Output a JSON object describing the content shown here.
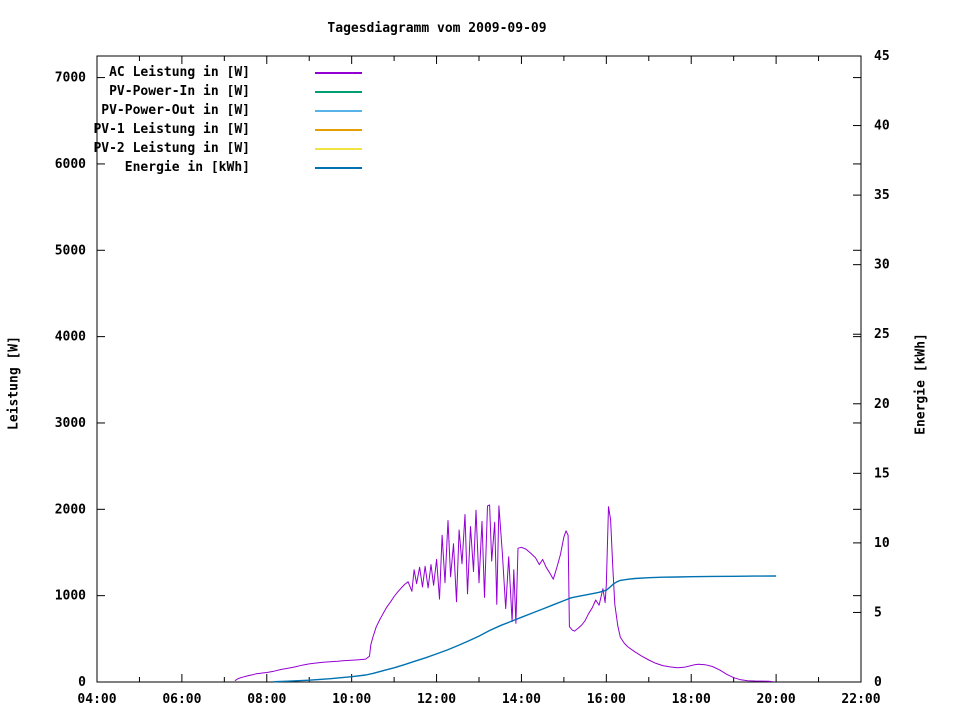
{
  "page": {
    "background": "#ffffff",
    "foreground": "#000000"
  },
  "chart_data": {
    "type": "line",
    "title": "Tagesdiagramm vom 2009-09-09",
    "ylabel": "Leistung [W]",
    "y2label": "Energie [kWh]",
    "xlabel": "",
    "grid": false,
    "legend_position": "top-left-inside",
    "x_axis": {
      "unit": "time-of-day",
      "min_hour": 4,
      "max_hour": 22,
      "major_ticks": [
        {
          "h": 4,
          "label": "04:00"
        },
        {
          "h": 6,
          "label": "06:00"
        },
        {
          "h": 8,
          "label": "08:00"
        },
        {
          "h": 10,
          "label": "10:00"
        },
        {
          "h": 12,
          "label": "12:00"
        },
        {
          "h": 14,
          "label": "14:00"
        },
        {
          "h": 16,
          "label": "16:00"
        },
        {
          "h": 18,
          "label": "18:00"
        },
        {
          "h": 20,
          "label": "20:00"
        },
        {
          "h": 22,
          "label": "22:00"
        }
      ],
      "minor_tick_hours": [
        5,
        7,
        9,
        11,
        13,
        15,
        17,
        19,
        21
      ]
    },
    "y_axis_left": {
      "label": "Leistung [W]",
      "min": 0,
      "max": 7250,
      "ticks": [
        {
          "v": 0,
          "label": "0"
        },
        {
          "v": 1000,
          "label": "1000"
        },
        {
          "v": 2000,
          "label": "2000"
        },
        {
          "v": 3000,
          "label": "3000"
        },
        {
          "v": 4000,
          "label": "4000"
        },
        {
          "v": 5000,
          "label": "5000"
        },
        {
          "v": 6000,
          "label": "6000"
        },
        {
          "v": 7000,
          "label": "7000"
        }
      ]
    },
    "y_axis_right": {
      "label": "Energie [kWh]",
      "min": 0,
      "max": 45,
      "ticks": [
        {
          "v": 0,
          "label": "0"
        },
        {
          "v": 5,
          "label": "5"
        },
        {
          "v": 10,
          "label": "10"
        },
        {
          "v": 15,
          "label": "15"
        },
        {
          "v": 20,
          "label": "20"
        },
        {
          "v": 25,
          "label": "25"
        },
        {
          "v": 30,
          "label": "30"
        },
        {
          "v": 35,
          "label": "35"
        },
        {
          "v": 40,
          "label": "40"
        },
        {
          "v": 45,
          "label": "45"
        }
      ]
    },
    "series": [
      {
        "name": "AC Leistung in [W]",
        "color": "#9400d3",
        "axis": "left",
        "width": 1,
        "points": [
          [
            7.25,
            15
          ],
          [
            7.33,
            40
          ],
          [
            7.42,
            55
          ],
          [
            7.5,
            65
          ],
          [
            7.58,
            75
          ],
          [
            7.67,
            85
          ],
          [
            7.75,
            95
          ],
          [
            7.83,
            100
          ],
          [
            7.92,
            105
          ],
          [
            8.0,
            110
          ],
          [
            8.17,
            125
          ],
          [
            8.33,
            145
          ],
          [
            8.5,
            160
          ],
          [
            8.67,
            175
          ],
          [
            8.83,
            195
          ],
          [
            9.0,
            210
          ],
          [
            9.17,
            220
          ],
          [
            9.33,
            228
          ],
          [
            9.5,
            235
          ],
          [
            9.67,
            240
          ],
          [
            9.83,
            248
          ],
          [
            10.0,
            252
          ],
          [
            10.17,
            258
          ],
          [
            10.33,
            265
          ],
          [
            10.42,
            300
          ],
          [
            10.45,
            430
          ],
          [
            10.5,
            520
          ],
          [
            10.58,
            640
          ],
          [
            10.67,
            730
          ],
          [
            10.75,
            800
          ],
          [
            10.83,
            870
          ],
          [
            10.92,
            930
          ],
          [
            11.0,
            990
          ],
          [
            11.08,
            1040
          ],
          [
            11.17,
            1090
          ],
          [
            11.25,
            1130
          ],
          [
            11.33,
            1160
          ],
          [
            11.42,
            1050
          ],
          [
            11.47,
            1300
          ],
          [
            11.53,
            1140
          ],
          [
            11.6,
            1330
          ],
          [
            11.67,
            1100
          ],
          [
            11.73,
            1340
          ],
          [
            11.8,
            1090
          ],
          [
            11.87,
            1360
          ],
          [
            11.93,
            1120
          ],
          [
            12.0,
            1420
          ],
          [
            12.07,
            960
          ],
          [
            12.13,
            1700
          ],
          [
            12.2,
            1150
          ],
          [
            12.27,
            1870
          ],
          [
            12.33,
            1220
          ],
          [
            12.4,
            1600
          ],
          [
            12.47,
            930
          ],
          [
            12.53,
            1760
          ],
          [
            12.6,
            1370
          ],
          [
            12.67,
            1940
          ],
          [
            12.73,
            1020
          ],
          [
            12.8,
            1800
          ],
          [
            12.87,
            1280
          ],
          [
            12.93,
            1990
          ],
          [
            13.0,
            1150
          ],
          [
            13.07,
            1860
          ],
          [
            13.13,
            980
          ],
          [
            13.2,
            2040
          ],
          [
            13.25,
            2050
          ],
          [
            13.3,
            1400
          ],
          [
            13.37,
            1850
          ],
          [
            13.42,
            900
          ],
          [
            13.47,
            2040
          ],
          [
            13.55,
            1500
          ],
          [
            13.63,
            850
          ],
          [
            13.7,
            1450
          ],
          [
            13.78,
            700
          ],
          [
            13.82,
            1300
          ],
          [
            13.87,
            680
          ],
          [
            13.92,
            1550
          ],
          [
            14.0,
            1560
          ],
          [
            14.1,
            1540
          ],
          [
            14.2,
            1500
          ],
          [
            14.33,
            1440
          ],
          [
            14.42,
            1360
          ],
          [
            14.5,
            1420
          ],
          [
            14.58,
            1330
          ],
          [
            14.67,
            1260
          ],
          [
            14.75,
            1190
          ],
          [
            14.83,
            1320
          ],
          [
            14.92,
            1480
          ],
          [
            15.0,
            1680
          ],
          [
            15.05,
            1750
          ],
          [
            15.1,
            1700
          ],
          [
            15.13,
            640
          ],
          [
            15.2,
            600
          ],
          [
            15.25,
            590
          ],
          [
            15.33,
            620
          ],
          [
            15.42,
            660
          ],
          [
            15.5,
            710
          ],
          [
            15.58,
            790
          ],
          [
            15.67,
            860
          ],
          [
            15.75,
            950
          ],
          [
            15.83,
            890
          ],
          [
            15.92,
            1080
          ],
          [
            15.97,
            920
          ],
          [
            16.0,
            1120
          ],
          [
            16.05,
            2030
          ],
          [
            16.1,
            1880
          ],
          [
            16.15,
            1350
          ],
          [
            16.2,
            900
          ],
          [
            16.27,
            650
          ],
          [
            16.33,
            520
          ],
          [
            16.42,
            450
          ],
          [
            16.5,
            410
          ],
          [
            16.67,
            350
          ],
          [
            16.83,
            300
          ],
          [
            17.0,
            255
          ],
          [
            17.17,
            215
          ],
          [
            17.33,
            190
          ],
          [
            17.5,
            175
          ],
          [
            17.67,
            165
          ],
          [
            17.83,
            170
          ],
          [
            18.0,
            190
          ],
          [
            18.08,
            200
          ],
          [
            18.17,
            205
          ],
          [
            18.33,
            200
          ],
          [
            18.5,
            180
          ],
          [
            18.67,
            140
          ],
          [
            18.83,
            90
          ],
          [
            19.0,
            50
          ],
          [
            19.17,
            25
          ],
          [
            19.33,
            15
          ],
          [
            19.5,
            12
          ],
          [
            19.67,
            10
          ],
          [
            19.83,
            8
          ],
          [
            19.92,
            5
          ]
        ]
      },
      {
        "name": "PV-Power-In in [W]",
        "color": "#009e73",
        "axis": "left",
        "width": 1,
        "points": []
      },
      {
        "name": "PV-Power-Out in [W]",
        "color": "#56b4e9",
        "axis": "left",
        "width": 1,
        "points": []
      },
      {
        "name": "PV-1 Leistung in [W]",
        "color": "#e69f00",
        "axis": "left",
        "width": 1,
        "points": []
      },
      {
        "name": "PV-2 Leistung in [W]",
        "color": "#f0e442",
        "axis": "left",
        "width": 1,
        "points": []
      },
      {
        "name": "Energie in [kWh]",
        "color": "#0072b2",
        "axis": "right",
        "width": 1.4,
        "points": [
          [
            8.17,
            0.02
          ],
          [
            8.5,
            0.06
          ],
          [
            9.0,
            0.13
          ],
          [
            9.5,
            0.24
          ],
          [
            10.0,
            0.38
          ],
          [
            10.33,
            0.5
          ],
          [
            10.5,
            0.62
          ],
          [
            10.75,
            0.82
          ],
          [
            11.0,
            1.02
          ],
          [
            11.25,
            1.25
          ],
          [
            11.5,
            1.5
          ],
          [
            11.75,
            1.75
          ],
          [
            12.0,
            2.02
          ],
          [
            12.25,
            2.3
          ],
          [
            12.5,
            2.62
          ],
          [
            12.75,
            2.95
          ],
          [
            13.0,
            3.3
          ],
          [
            13.25,
            3.7
          ],
          [
            13.5,
            4.05
          ],
          [
            13.75,
            4.35
          ],
          [
            14.0,
            4.65
          ],
          [
            14.25,
            4.95
          ],
          [
            14.5,
            5.25
          ],
          [
            14.75,
            5.55
          ],
          [
            15.0,
            5.85
          ],
          [
            15.17,
            6.05
          ],
          [
            15.33,
            6.15
          ],
          [
            15.5,
            6.25
          ],
          [
            15.67,
            6.35
          ],
          [
            15.83,
            6.45
          ],
          [
            16.0,
            6.6
          ],
          [
            16.08,
            6.8
          ],
          [
            16.17,
            7.05
          ],
          [
            16.25,
            7.2
          ],
          [
            16.33,
            7.3
          ],
          [
            16.5,
            7.38
          ],
          [
            16.67,
            7.44
          ],
          [
            17.0,
            7.5
          ],
          [
            17.33,
            7.53
          ],
          [
            17.67,
            7.55
          ],
          [
            18.0,
            7.57
          ],
          [
            18.5,
            7.59
          ],
          [
            19.0,
            7.6
          ],
          [
            19.5,
            7.61
          ],
          [
            20.0,
            7.62
          ]
        ]
      }
    ]
  }
}
